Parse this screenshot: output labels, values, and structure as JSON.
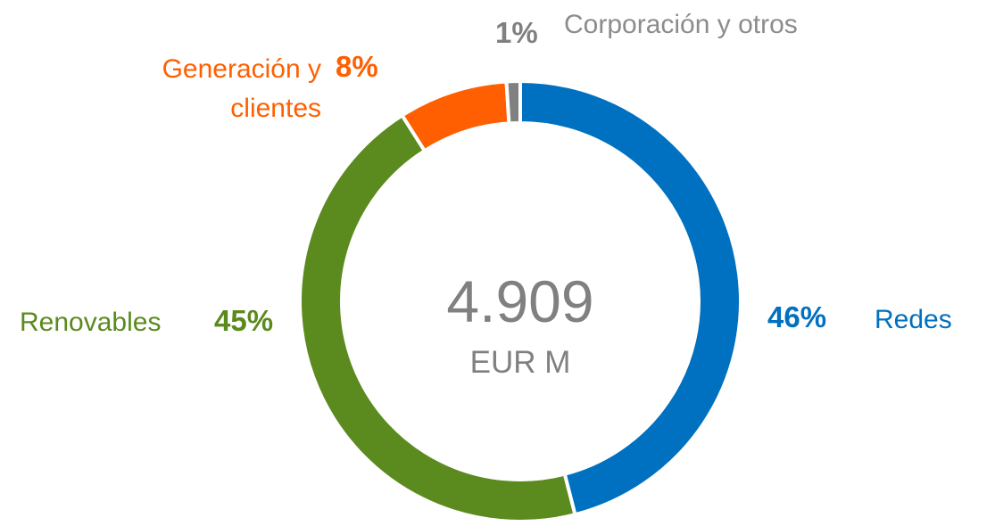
{
  "chart_data": {
    "type": "donut",
    "categories": [
      "Redes",
      "Renovables",
      "Generación y clientes",
      "Corporación y otros"
    ],
    "values": [
      46,
      45,
      8,
      1
    ],
    "value_labels": [
      "46%",
      "45%",
      "8%",
      "1%"
    ],
    "colors": [
      "#0070c0",
      "#5b8a1e",
      "#ff5f00",
      "#808080"
    ],
    "total": "4.909",
    "total_unit": "EUR M"
  }
}
